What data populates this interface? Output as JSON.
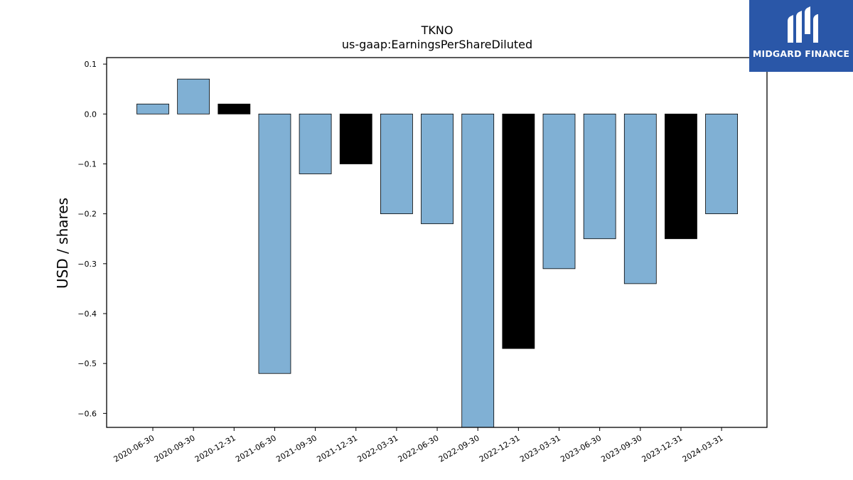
{
  "brand": {
    "name": "MIDGARD FINANCE",
    "bg_color": "#2a57a8"
  },
  "chart_data": {
    "type": "bar",
    "title": "TKNO",
    "subtitle": "us-gaap:EarningsPerShareDiluted",
    "xlabel": "",
    "ylabel": "USD / shares",
    "ylim": [
      -0.628,
      0.113
    ],
    "yticks": [
      0.1,
      0.0,
      -0.1,
      -0.2,
      -0.3,
      -0.4,
      -0.5,
      -0.6
    ],
    "ytick_labels": [
      "0.1",
      "0.0",
      "−0.1",
      "−0.2",
      "−0.3",
      "−0.4",
      "−0.5",
      "−0.6"
    ],
    "grid": false,
    "categories": [
      "2020-06-30",
      "2020-09-30",
      "2020-12-31",
      "2021-06-30",
      "2021-09-30",
      "2021-12-31",
      "2022-03-31",
      "2022-06-30",
      "2022-09-30",
      "2022-12-31",
      "2023-03-31",
      "2023-06-30",
      "2023-09-30",
      "2023-12-31",
      "2024-03-31"
    ],
    "values": [
      0.02,
      0.07,
      0.02,
      -0.52,
      -0.12,
      -0.1,
      -0.2,
      -0.22,
      -0.65,
      -0.47,
      -0.31,
      -0.25,
      -0.34,
      -0.25,
      -0.2
    ],
    "bar_colors": [
      "#80b0d4",
      "#80b0d4",
      "#000000",
      "#80b0d4",
      "#80b0d4",
      "#000000",
      "#80b0d4",
      "#80b0d4",
      "#80b0d4",
      "#000000",
      "#80b0d4",
      "#80b0d4",
      "#80b0d4",
      "#000000",
      "#80b0d4"
    ]
  }
}
